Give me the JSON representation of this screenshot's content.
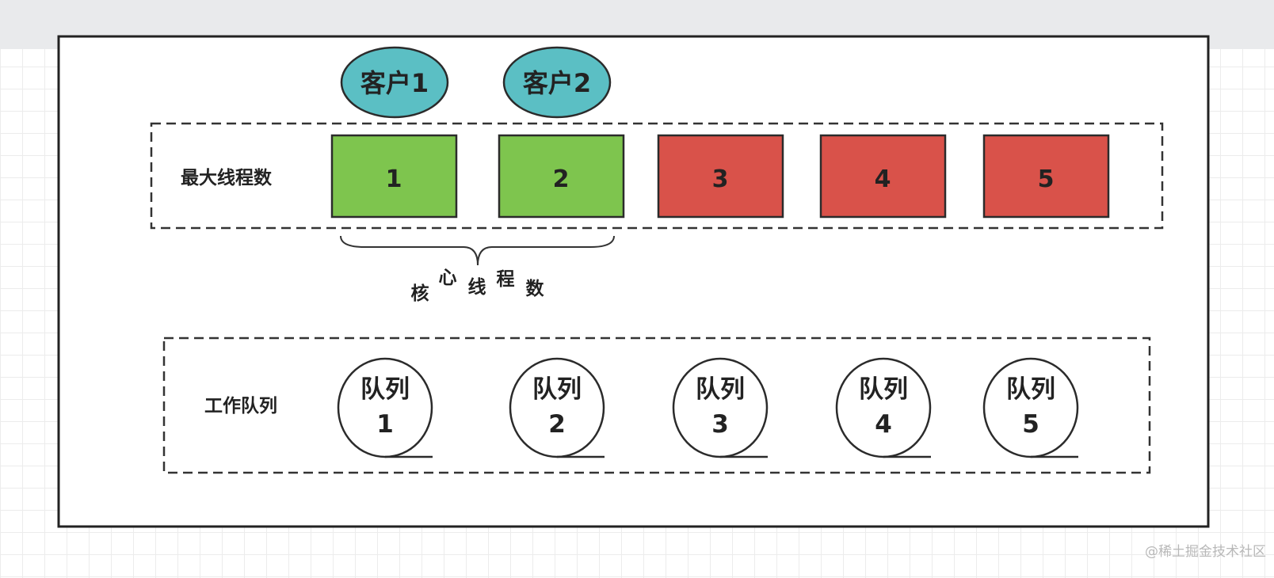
{
  "clients": [
    "客户1",
    "客户2"
  ],
  "max_threads": {
    "label": "最大线程数",
    "threads": [
      "1",
      "2",
      "3",
      "4",
      "5"
    ],
    "core_count": 2
  },
  "core_threads_label": [
    "核",
    "心",
    "线",
    "程",
    "数"
  ],
  "work_queue": {
    "label": "工作队列",
    "queues": [
      [
        "队列",
        "1"
      ],
      [
        "队列",
        "2"
      ],
      [
        "队列",
        "3"
      ],
      [
        "队列",
        "4"
      ],
      [
        "队列",
        "5"
      ]
    ]
  },
  "colors": {
    "client": "#5bbfc4",
    "core_thread": "#7ec54e",
    "extra_thread": "#d9524a",
    "stroke": "#2b2b2b"
  },
  "watermark": "@稀土掘金技术社区"
}
